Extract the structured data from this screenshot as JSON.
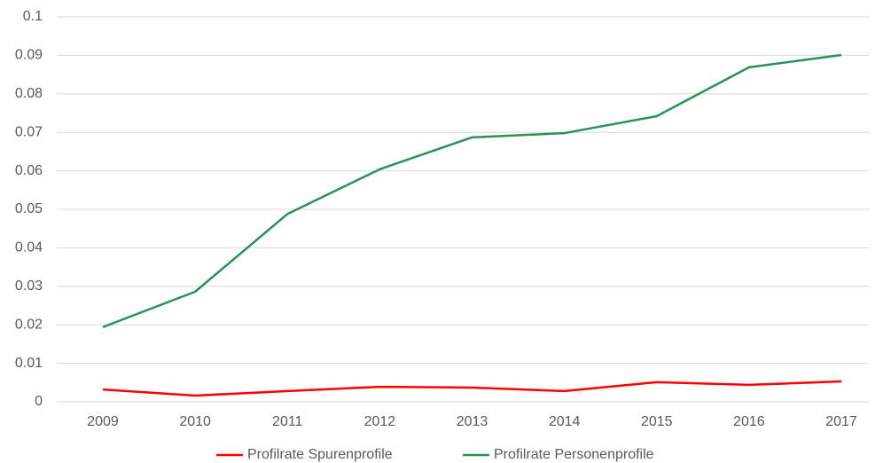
{
  "chart_data": {
    "type": "line",
    "categories": [
      "2009",
      "2010",
      "2011",
      "2012",
      "2013",
      "2014",
      "2015",
      "2016",
      "2017"
    ],
    "series": [
      {
        "name": "Profilrate Spurenprofile",
        "color": "#ff0000",
        "values": [
          0.0032,
          0.0016,
          0.0028,
          0.0039,
          0.0037,
          0.0028,
          0.0051,
          0.0044,
          0.0053
        ]
      },
      {
        "name": "Profilrate Personenprofile",
        "color": "#2a9158",
        "values": [
          0.0194,
          0.0286,
          0.0488,
          0.0604,
          0.0687,
          0.0698,
          0.0742,
          0.0869,
          0.0901
        ]
      }
    ],
    "ylim": [
      0,
      0.1
    ],
    "yticks": [
      0,
      0.01,
      0.02,
      0.03,
      0.04,
      0.05,
      0.06,
      0.07,
      0.08,
      0.09,
      0.1
    ],
    "grid": true,
    "legend": "bottom"
  }
}
